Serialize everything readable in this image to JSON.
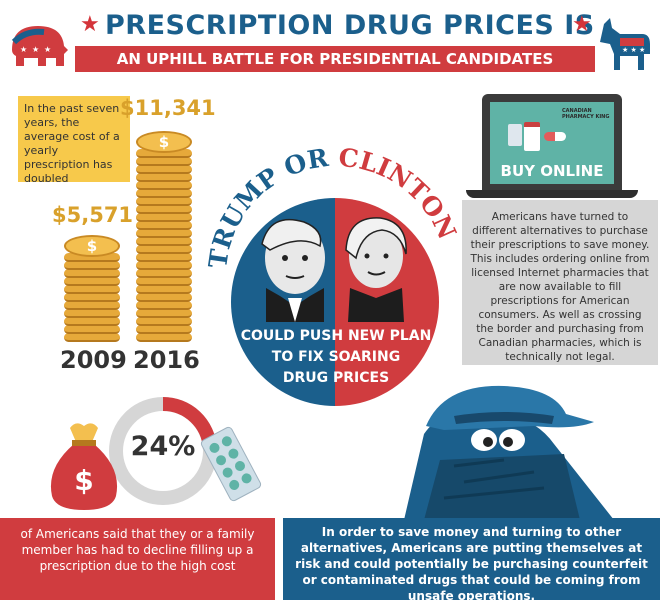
{
  "header": {
    "title": "PRESCRIPTION DRUG PRICES IS",
    "subtitle": "AN UPHILL BATTLE FOR PRESIDENTIAL CANDIDATES"
  },
  "stats": {
    "note": "In the past seven years, the average cost of a yearly prescription has doubled",
    "price_2009": "$5,571",
    "price_2016": "$11,341",
    "year_2009": "2009",
    "year_2016": "2016"
  },
  "center": {
    "trump": "TRUMP OR",
    "clinton": "CLINTON",
    "line1": "COULD PUSH NEW PLAN",
    "line2": "TO FIX SOARING",
    "line3": "DRUG PRICES"
  },
  "laptop": {
    "label": "BUY ONLINE",
    "logo": "CANADIAN PHARMACY KING"
  },
  "online_text": "Americans have turned to different alternatives to purchase their prescriptions to save money. This includes ordering online from licensed Internet pharmacies that are now available to fill prescriptions for American consumers. As well as crossing the border and purchasing from Canadian pharmacies, which is technically not legal.",
  "percent": {
    "value": "24%",
    "fraction": 0.24
  },
  "bottom_left": "of Americans said that they or a family member has had to decline filling up a prescription due to the high cost",
  "bottom_right": "In order to save money and turning to other alternatives, Americans are putting themselves at risk and could potentially be purchasing counterfeit or contaminated drugs that could be coming from unsafe operations.",
  "colors": {
    "red": "#d03c3f",
    "blue": "#1b5f8c",
    "gold": "#f7c94b",
    "gray": "#d6d6d6"
  }
}
